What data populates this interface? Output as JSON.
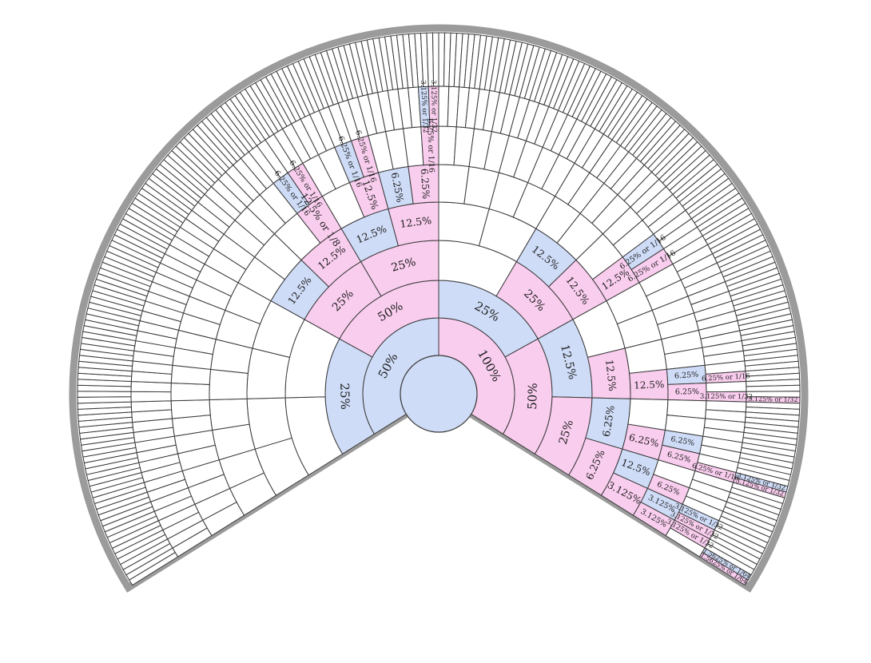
{
  "colors": {
    "male": "#cfdcf7",
    "female": "#f9cdee",
    "empty": "#ffffff"
  },
  "root": {
    "label": "",
    "color": "male"
  },
  "generations": 8,
  "labelled": [
    {
      "path": "M",
      "label": "50%",
      "color": "male"
    },
    {
      "path": "F",
      "label": "100%",
      "color": "female"
    },
    {
      "path": "MM",
      "label": "25%",
      "color": "male"
    },
    {
      "path": "MF",
      "label": "50%",
      "color": "female"
    },
    {
      "path": "FM",
      "label": "25%",
      "color": "male"
    },
    {
      "path": "FF",
      "label": "50%",
      "color": "female"
    },
    {
      "path": "MFM",
      "label": "25%",
      "color": "female"
    },
    {
      "path": "MFF",
      "label": "25%",
      "color": "female"
    },
    {
      "path": "FMF",
      "label": "25%",
      "color": "female"
    },
    {
      "path": "FFM",
      "label": "12.5%",
      "color": "male"
    },
    {
      "path": "FFF",
      "label": "25%",
      "color": "female"
    },
    {
      "path": "MFMM",
      "label": "12.5%",
      "color": "male"
    },
    {
      "path": "MFMF",
      "label": "12.5%",
      "color": "female"
    },
    {
      "path": "MFFM",
      "label": "12.5%",
      "color": "male"
    },
    {
      "path": "MFFF",
      "label": "12.5%",
      "color": "female"
    },
    {
      "path": "FMFM",
      "label": "12.5%",
      "color": "male"
    },
    {
      "path": "FMFF",
      "label": "12.5%",
      "color": "female"
    },
    {
      "path": "FFMF",
      "label": "12.5%",
      "color": "female"
    },
    {
      "path": "FFFM",
      "label": "6.25%",
      "color": "male"
    },
    {
      "path": "FFFF",
      "label": "6.25%",
      "color": "female"
    },
    {
      "path": "MFMFF",
      "label": "12.5% or 1/8",
      "color": "female"
    },
    {
      "path": "MFMFFM",
      "label": "6.25% or 1/16",
      "color": "male"
    },
    {
      "path": "MFMFFF",
      "label": "6.25% or 1/16",
      "color": "female"
    },
    {
      "path": "MFFMF",
      "label": "12.5%",
      "color": "female"
    },
    {
      "path": "MFFFM",
      "label": "6.25%",
      "color": "male"
    },
    {
      "path": "MFFFF",
      "label": "6.25%",
      "color": "female"
    },
    {
      "path": "MFFMFM",
      "label": "6.25% or 1/16",
      "color": "male"
    },
    {
      "path": "MFFMFF",
      "label": "6.25% or 1/16",
      "color": "female"
    },
    {
      "path": "MFFFFF",
      "label": "6.25% or 1/16",
      "color": "female"
    },
    {
      "path": "MFFFFFM",
      "label": "3.125% or 1/32",
      "color": "male"
    },
    {
      "path": "MFFFFFF",
      "label": "3.125% or 1/32",
      "color": "female"
    },
    {
      "path": "FMFFF",
      "label": "12.5%",
      "color": "female"
    },
    {
      "path": "FMFFFM",
      "label": "6.25% or 1/16",
      "color": "male"
    },
    {
      "path": "FMFFFF",
      "label": "6.25% or 1/16",
      "color": "female"
    },
    {
      "path": "FFMFF",
      "label": "12.5%",
      "color": "female"
    },
    {
      "path": "FFMFFM",
      "label": "6.25%",
      "color": "male"
    },
    {
      "path": "FFMFFF",
      "label": "6.25%",
      "color": "female"
    },
    {
      "path": "FFMFFMF",
      "label": "6.25% or 1/16",
      "color": "female"
    },
    {
      "path": "FFMFFFF",
      "label": "3.125% or 1/32",
      "color": "female"
    },
    {
      "path": "FFMFFFFF",
      "label": "3.125% or 1/32",
      "color": "female"
    },
    {
      "path": "FFFMF",
      "label": "6.25%",
      "color": "female"
    },
    {
      "path": "FFFFM",
      "label": "12.5%",
      "color": "male"
    },
    {
      "path": "FFFFF",
      "label": "3.125%",
      "color": "female"
    },
    {
      "path": "FFFMFM",
      "label": "6.25%",
      "color": "male"
    },
    {
      "path": "FFFMFF",
      "label": "6.25%",
      "color": "female"
    },
    {
      "path": "FFFFMF",
      "label": "6.25%",
      "color": "female"
    },
    {
      "path": "FFFFFM",
      "label": "3.125%",
      "color": "male"
    },
    {
      "path": "FFFFFF",
      "label": "3.125%",
      "color": "female"
    },
    {
      "path": "FFFMFFF",
      "label": "6.25% or 1/16",
      "color": "female"
    },
    {
      "path": "FFFMFFFM",
      "label": "3.125% or 1/32",
      "color": "male"
    },
    {
      "path": "FFFMFFFF",
      "label": "3.125% or 1/32",
      "color": "female"
    },
    {
      "path": "FFFFFMM",
      "label": "3.125% or 1/32",
      "color": "male"
    },
    {
      "path": "FFFFFMF",
      "label": "3.125% or 1/32",
      "color": "female"
    },
    {
      "path": "FFFFFFM",
      "label": "3.125% or 1/32",
      "color": "female"
    },
    {
      "path": "FFFFFFFM",
      "label": "1.5625% or 1/64",
      "color": "male"
    },
    {
      "path": "FFFFFFFF",
      "label": "1.5625% or 1/64",
      "color": "female"
    }
  ]
}
